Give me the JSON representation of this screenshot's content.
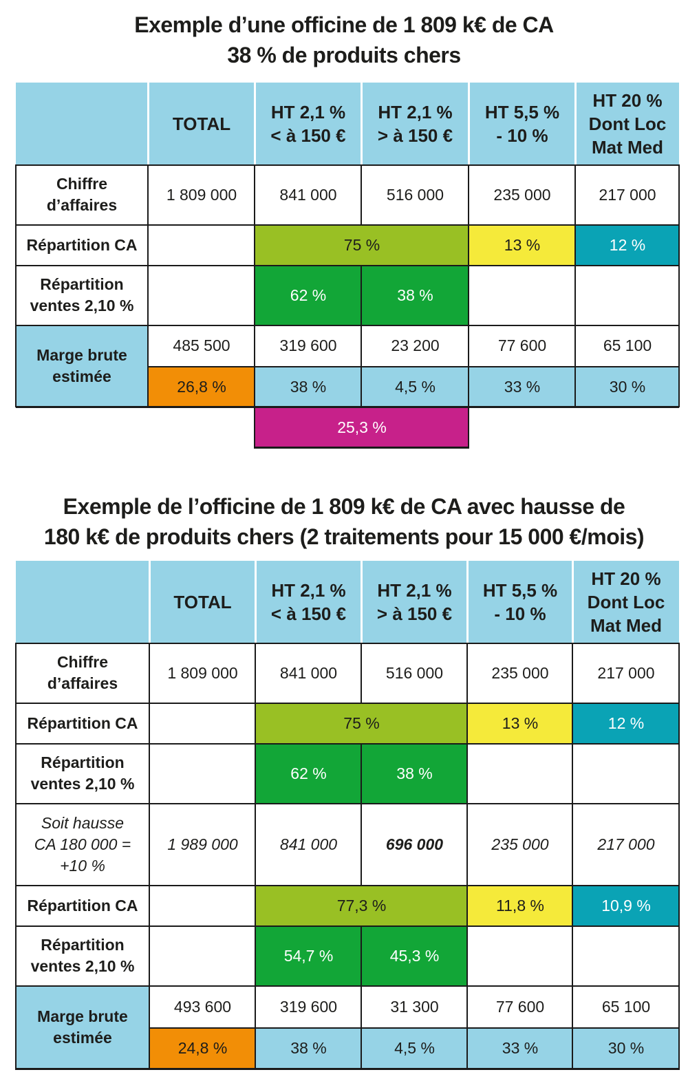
{
  "table1": {
    "title_line1": "Exemple d’une officine de 1 809 k€ de CA",
    "title_line2": "38 % de produits chers",
    "headers": {
      "col1": "TOTAL",
      "col2_l1": "HT 2,1 %",
      "col2_l2": "< à 150 €",
      "col3_l1": "HT 2,1 %",
      "col3_l2": "> à 150 €",
      "col4_l1": "HT 5,5 %",
      "col4_l2": "- 10 %",
      "col5_l1": "HT 20 %",
      "col5_l2": "Dont Loc",
      "col5_l3": "Mat Med"
    },
    "ca": {
      "label_l1": "Chiffre",
      "label_l2": "d’affaires",
      "values": [
        "1 809 000",
        "841 000",
        "516 000",
        "235 000",
        "217 000"
      ]
    },
    "rep_ca": {
      "label": "Répartition CA",
      "lime": "75 %",
      "yellow": "13 %",
      "teal": "12 %"
    },
    "rep_ventes": {
      "label_l1": "Répartition",
      "label_l2": "ventes 2,10 %",
      "v1": "62 %",
      "v2": "38 %"
    },
    "marge": {
      "label_l1": "Marge brute",
      "label_l2": "estimée",
      "values": [
        "485 500",
        "319 600",
        "23 200",
        "77 600",
        "65 100"
      ],
      "rates": [
        "26,8 %",
        "38 %",
        "4,5 %",
        "33 %",
        "30 %"
      ],
      "combined": "25,3 %"
    }
  },
  "table2": {
    "title_line1": "Exemple de l’officine de 1 809 k€ de CA avec hausse de",
    "title_line2": "180 k€ de produits chers (2 traitements pour 15 000 €/mois)",
    "headers": {
      "col1": "TOTAL",
      "col2_l1": "HT 2,1 %",
      "col2_l2": "< à 150 €",
      "col3_l1": "HT 2,1 %",
      "col3_l2": "> à 150 €",
      "col4_l1": "HT 5,5 %",
      "col4_l2": "- 10 %",
      "col5_l1": "HT 20 %",
      "col5_l2": "Dont Loc",
      "col5_l3": "Mat Med"
    },
    "ca": {
      "label_l1": "Chiffre",
      "label_l2": "d’affaires",
      "values": [
        "1 809 000",
        "841 000",
        "516 000",
        "235 000",
        "217 000"
      ]
    },
    "rep_ca": {
      "label": "Répartition CA",
      "lime": "75 %",
      "yellow": "13 %",
      "teal": "12 %"
    },
    "rep_ventes": {
      "label_l1": "Répartition",
      "label_l2": "ventes 2,10 %",
      "v1": "62 %",
      "v2": "38 %"
    },
    "hausse": {
      "label_l1": "Soit hausse",
      "label_l2": "CA 180 000 =",
      "label_l3": "+10 %",
      "values": [
        "1 989 000",
        "841 000",
        "696 000",
        "235 000",
        "217 000"
      ]
    },
    "rep_ca2": {
      "label": "Répartition CA",
      "lime": "77,3 %",
      "yellow": "11,8 %",
      "teal": "10,9 %"
    },
    "rep_ventes2": {
      "label_l1": "Répartition",
      "label_l2": "ventes 2,10 %",
      "v1": "54,7 %",
      "v2": "45,3 %"
    },
    "marge": {
      "label_l1": "Marge brute",
      "label_l2": "estimée",
      "values": [
        "493 600",
        "319 600",
        "31 300",
        "77 600",
        "65 100"
      ],
      "rates": [
        "24,8 %",
        "38 %",
        "4,5 %",
        "33 %",
        "30 %"
      ]
    }
  }
}
